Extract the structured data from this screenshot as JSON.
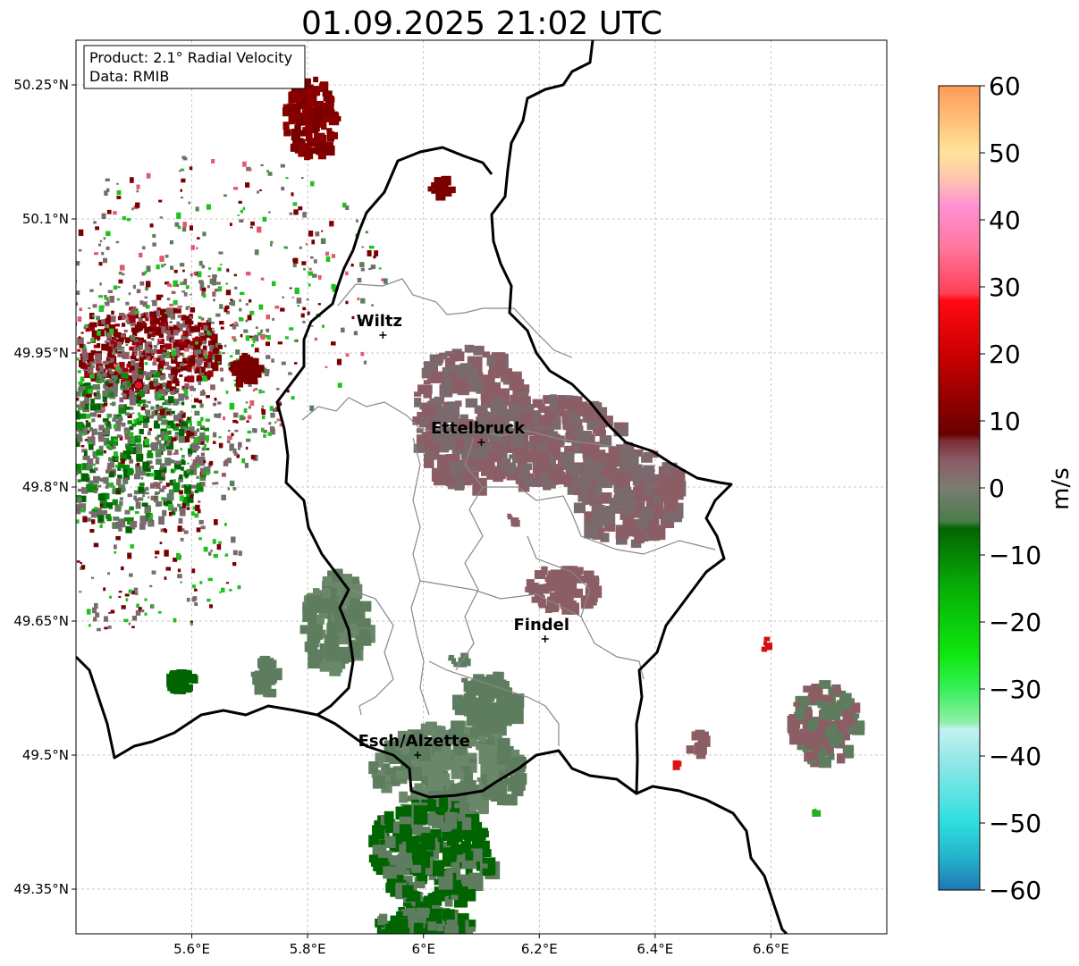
{
  "title": "01.09.2025 21:02 UTC",
  "info_box": {
    "product": "Product: 2.1° Radial Velocity",
    "data": "Data: RMIB"
  },
  "axes": {
    "lon_ticks": [
      "5.6°E",
      "5.8°E",
      "6°E",
      "6.2°E",
      "6.4°E",
      "6.6°E"
    ],
    "lat_ticks": [
      "50.25°N",
      "50.1°N",
      "49.95°N",
      "49.8°N",
      "49.65°N",
      "49.5°N",
      "49.35°N"
    ],
    "lon_values": [
      5.6,
      5.8,
      6.0,
      6.2,
      6.4,
      6.6
    ],
    "lat_values": [
      50.25,
      50.1,
      49.95,
      49.8,
      49.65,
      49.5,
      49.35
    ],
    "lon_range": [
      5.4,
      6.8
    ],
    "lat_range": [
      49.3,
      50.3
    ],
    "grid": true
  },
  "cities": [
    {
      "name": "Wiltz",
      "lon": 5.93,
      "lat": 49.97
    },
    {
      "name": "Ettelbruck",
      "lon": 6.1,
      "lat": 49.85
    },
    {
      "name": "Findel",
      "lon": 6.21,
      "lat": 49.63
    },
    {
      "name": "Esch/Alzette",
      "lon": 5.99,
      "lat": 49.5
    }
  ],
  "radar_site": {
    "lon": 5.505,
    "lat": 49.915,
    "color": "#e8141a"
  },
  "colorbar": {
    "label": "m/s",
    "min": -60,
    "max": 60,
    "tick_labels": [
      "60",
      "50",
      "40",
      "30",
      "20",
      "10",
      "0",
      "−10",
      "−20",
      "−30",
      "−40",
      "−50",
      "−60"
    ],
    "tick_values": [
      60,
      50,
      40,
      30,
      20,
      10,
      0,
      -10,
      -20,
      -30,
      -40,
      -50,
      -60
    ],
    "stops": [
      {
        "v": -60,
        "c": "#1f77b4"
      },
      {
        "v": -55,
        "c": "#25b4cc"
      },
      {
        "v": -50,
        "c": "#2ddede"
      },
      {
        "v": -40,
        "c": "#9ae9ea"
      },
      {
        "v": -36,
        "c": "#c2f3f0"
      },
      {
        "v": -35,
        "c": "#8ff0a8"
      },
      {
        "v": -30,
        "c": "#37f05a"
      },
      {
        "v": -25,
        "c": "#0fe80f"
      },
      {
        "v": -15,
        "c": "#06b006"
      },
      {
        "v": -6,
        "c": "#036403"
      },
      {
        "v": -5,
        "c": "#4a7d4a"
      },
      {
        "v": 0,
        "c": "#7b7b72"
      },
      {
        "v": 4,
        "c": "#8b5d67"
      },
      {
        "v": 7,
        "c": "#7a2f37"
      },
      {
        "v": 8,
        "c": "#6a0000"
      },
      {
        "v": 20,
        "c": "#cc0000"
      },
      {
        "v": 28,
        "c": "#ff0a12"
      },
      {
        "v": 29,
        "c": "#ff4055"
      },
      {
        "v": 36,
        "c": "#ff78a0"
      },
      {
        "v": 42,
        "c": "#ff90d0"
      },
      {
        "v": 46,
        "c": "#ffc4b0"
      },
      {
        "v": 50,
        "c": "#ffe49a"
      },
      {
        "v": 55,
        "c": "#ffbf78"
      },
      {
        "v": 60,
        "c": "#ff9a58"
      }
    ]
  },
  "colors": {
    "inbound_strong": "#006400",
    "inbound_weak": "#5e7d5e",
    "near_zero": "#7a6a6e",
    "outbound_weak": "#8b5e66",
    "outbound_strong": "#7a0000",
    "border": "#000000",
    "canton": "#888888"
  }
}
